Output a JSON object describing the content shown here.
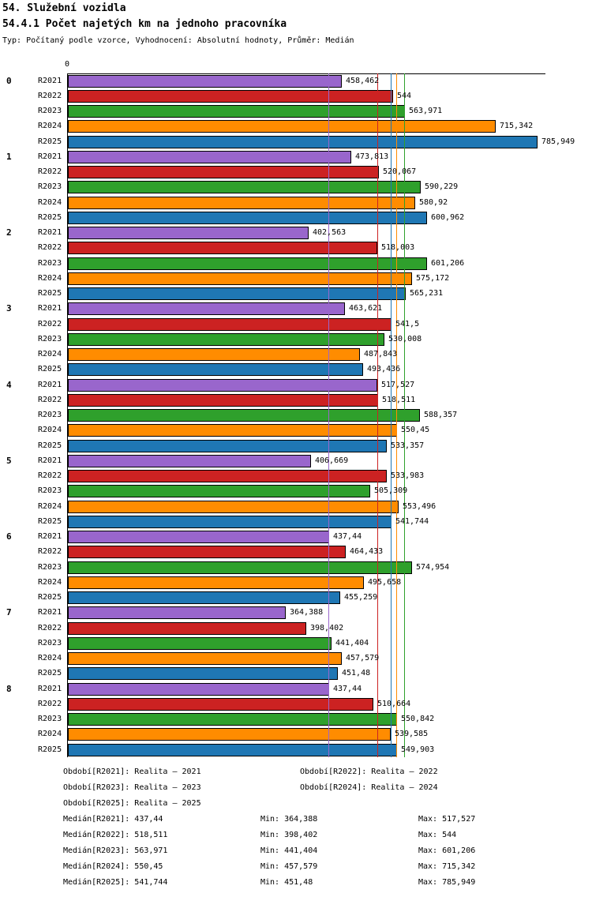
{
  "chart_data": {
    "type": "bar",
    "orientation": "horizontal",
    "title": "54. Služební vozidla",
    "subtitle": "54.4.1 Počet najetých km na jednoho pracovníka",
    "meta": "Typ: Počítaný podle vzorce, Vyhodnocení: Absolutní hodnoty, Průměr: Medián",
    "x_axis": {
      "origin_label": "0",
      "xlim": [
        0,
        800
      ],
      "grid": false
    },
    "legend_position": "bottom",
    "series": [
      {
        "name": "R2021",
        "color": "#9966CC",
        "median": 437.44
      },
      {
        "name": "R2022",
        "color": "#CC2222",
        "median": 518.511
      },
      {
        "name": "R2023",
        "color": "#2FA02C",
        "median": 563.971
      },
      {
        "name": "R2024",
        "color": "#FF8C00",
        "median": 550.45
      },
      {
        "name": "R2025",
        "color": "#1F77B4",
        "median": 541.744
      }
    ],
    "groups": [
      {
        "name": "0",
        "values": [
          458.462,
          544,
          563.971,
          715.342,
          785.949
        ],
        "labels": [
          "458,462",
          "544",
          "563,971",
          "715,342",
          "785,949"
        ]
      },
      {
        "name": "1",
        "values": [
          473.813,
          520.067,
          590.229,
          580.92,
          600.962
        ],
        "labels": [
          "473,813",
          "520,067",
          "590,229",
          "580,92",
          "600,962"
        ]
      },
      {
        "name": "2",
        "values": [
          402.563,
          518.003,
          601.206,
          575.172,
          565.231
        ],
        "labels": [
          "402,563",
          "518,003",
          "601,206",
          "575,172",
          "565,231"
        ]
      },
      {
        "name": "3",
        "values": [
          463.621,
          541.5,
          530.008,
          487.843,
          493.436
        ],
        "labels": [
          "463,621",
          "541,5",
          "530,008",
          "487,843",
          "493,436"
        ]
      },
      {
        "name": "4",
        "values": [
          517.527,
          518.511,
          588.357,
          550.45,
          533.357
        ],
        "labels": [
          "517,527",
          "518,511",
          "588,357",
          "550,45",
          "533,357"
        ]
      },
      {
        "name": "5",
        "values": [
          406.669,
          533.983,
          505.309,
          553.496,
          541.744
        ],
        "labels": [
          "406,669",
          "533,983",
          "505,309",
          "553,496",
          "541,744"
        ]
      },
      {
        "name": "6",
        "values": [
          437.44,
          464.433,
          574.954,
          495.658,
          455.259
        ],
        "labels": [
          "437,44",
          "464,433",
          "574,954",
          "495,658",
          "455,259"
        ]
      },
      {
        "name": "7",
        "values": [
          364.388,
          398.402,
          441.404,
          457.579,
          451.48
        ],
        "labels": [
          "364,388",
          "398,402",
          "441,404",
          "457,579",
          "451,48"
        ]
      },
      {
        "name": "8",
        "values": [
          437.44,
          510.664,
          550.842,
          539.585,
          549.903
        ],
        "labels": [
          "437,44",
          "510,664",
          "550,842",
          "539,585",
          "549,903"
        ]
      }
    ]
  },
  "legend": {
    "columns": [
      [
        "Období[R2021]: Realita – 2021",
        "Období[R2023]: Realita – 2023",
        "Období[R2025]: Realita – 2025"
      ],
      [
        "Období[R2022]: Realita – 2022",
        "Období[R2024]: Realita – 2024"
      ]
    ]
  },
  "stats": [
    {
      "median": "Medián[R2021]: 437,44",
      "min": "Min: 364,388",
      "max": "Max: 517,527"
    },
    {
      "median": "Medián[R2022]: 518,511",
      "min": "Min: 398,402",
      "max": "Max: 544"
    },
    {
      "median": "Medián[R2023]: 563,971",
      "min": "Min: 441,404",
      "max": "Max: 601,206"
    },
    {
      "median": "Medián[R2024]: 550,45",
      "min": "Min: 457,579",
      "max": "Max: 715,342"
    },
    {
      "median": "Medián[R2025]: 541,744",
      "min": "Min: 451,48",
      "max": "Max: 785,949"
    }
  ]
}
